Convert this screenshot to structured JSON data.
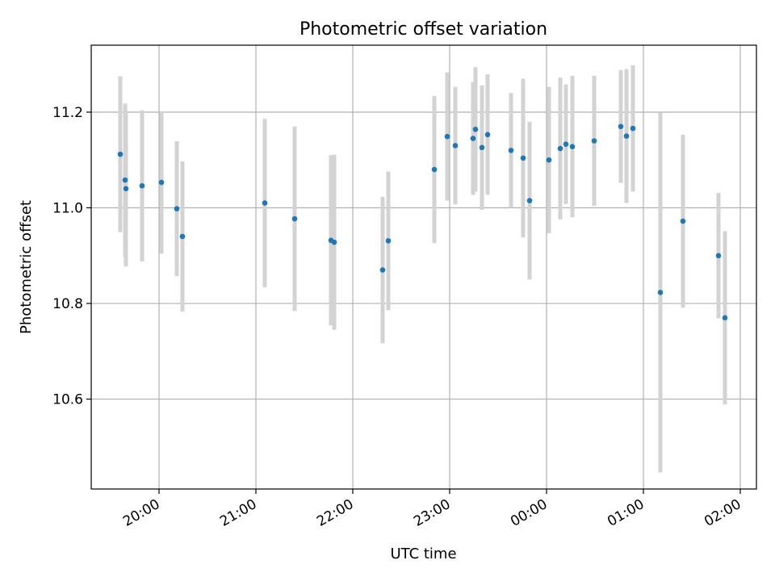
{
  "chart_data": {
    "type": "scatter",
    "title": "Photometric offset variation",
    "xlabel": "UTC time",
    "ylabel": "Photometric offset",
    "x_range": [
      "2023-01-01T19:18:00",
      "2023-01-02T02:10:00"
    ],
    "ylim": [
      10.412,
      11.34
    ],
    "x_ticks": [
      {
        "value": "2023-01-01T20:00:00",
        "label": "20:00"
      },
      {
        "value": "2023-01-01T21:00:00",
        "label": "21:00"
      },
      {
        "value": "2023-01-01T22:00:00",
        "label": "22:00"
      },
      {
        "value": "2023-01-01T23:00:00",
        "label": "23:00"
      },
      {
        "value": "2023-01-02T00:00:00",
        "label": "00:00"
      },
      {
        "value": "2023-01-02T01:00:00",
        "label": "01:00"
      },
      {
        "value": "2023-01-02T02:00:00",
        "label": "02:00"
      }
    ],
    "y_ticks": [
      10.6,
      10.8,
      11.0,
      11.2
    ],
    "y_tick_labels": [
      "10.6",
      "10.8",
      "11.0",
      "11.2"
    ],
    "grid": true,
    "marker_color": "#1f77b4",
    "errorbar_color": "#d3d3d3",
    "points": [
      {
        "x": "2023-01-01T19:36:00",
        "y": 11.112,
        "err": 0.163
      },
      {
        "x": "2023-01-01T19:39:00",
        "y": 11.058,
        "err": 0.16
      },
      {
        "x": "2023-01-01T19:39:30",
        "y": 11.04,
        "err": 0.163
      },
      {
        "x": "2023-01-01T19:49:30",
        "y": 11.046,
        "err": 0.158
      },
      {
        "x": "2023-01-01T20:01:30",
        "y": 11.053,
        "err": 0.149
      },
      {
        "x": "2023-01-01T20:11:00",
        "y": 10.998,
        "err": 0.141
      },
      {
        "x": "2023-01-01T20:14:30",
        "y": 10.94,
        "err": 0.157
      },
      {
        "x": "2023-01-01T21:05:30",
        "y": 11.01,
        "err": 0.176
      },
      {
        "x": "2023-01-01T21:24:00",
        "y": 10.977,
        "err": 0.193
      },
      {
        "x": "2023-01-01T21:46:30",
        "y": 10.932,
        "err": 0.178
      },
      {
        "x": "2023-01-01T21:48:30",
        "y": 10.928,
        "err": 0.183
      },
      {
        "x": "2023-01-01T22:18:30",
        "y": 10.87,
        "err": 0.153
      },
      {
        "x": "2023-01-01T22:22:00",
        "y": 10.931,
        "err": 0.145
      },
      {
        "x": "2023-01-01T22:50:30",
        "y": 11.08,
        "err": 0.154
      },
      {
        "x": "2023-01-01T22:58:30",
        "y": 11.149,
        "err": 0.134
      },
      {
        "x": "2023-01-01T23:03:30",
        "y": 11.13,
        "err": 0.123
      },
      {
        "x": "2023-01-01T23:14:30",
        "y": 11.145,
        "err": 0.118
      },
      {
        "x": "2023-01-01T23:16:00",
        "y": 11.164,
        "err": 0.13
      },
      {
        "x": "2023-01-01T23:20:00",
        "y": 11.126,
        "err": 0.13
      },
      {
        "x": "2023-01-01T23:23:30",
        "y": 11.153,
        "err": 0.126
      },
      {
        "x": "2023-01-01T23:38:00",
        "y": 11.12,
        "err": 0.12
      },
      {
        "x": "2023-01-01T23:45:30",
        "y": 11.104,
        "err": 0.166
      },
      {
        "x": "2023-01-01T23:49:30",
        "y": 11.015,
        "err": 0.165
      },
      {
        "x": "2023-01-02T00:01:30",
        "y": 11.1,
        "err": 0.153
      },
      {
        "x": "2023-01-02T00:08:30",
        "y": 11.124,
        "err": 0.148
      },
      {
        "x": "2023-01-02T00:12:00",
        "y": 11.133,
        "err": 0.125
      },
      {
        "x": "2023-01-02T00:16:00",
        "y": 11.128,
        "err": 0.148
      },
      {
        "x": "2023-01-02T00:29:30",
        "y": 11.14,
        "err": 0.136
      },
      {
        "x": "2023-01-02T00:46:00",
        "y": 11.17,
        "err": 0.118
      },
      {
        "x": "2023-01-02T00:49:30",
        "y": 11.15,
        "err": 0.14
      },
      {
        "x": "2023-01-02T00:53:30",
        "y": 11.166,
        "err": 0.132
      },
      {
        "x": "2023-01-02T01:10:30",
        "y": 10.823,
        "err": 0.376
      },
      {
        "x": "2023-01-02T01:24:30",
        "y": 10.972,
        "err": 0.181
      },
      {
        "x": "2023-01-02T01:46:30",
        "y": 10.9,
        "err": 0.131
      },
      {
        "x": "2023-01-02T01:50:30",
        "y": 10.77,
        "err": 0.181
      }
    ]
  }
}
